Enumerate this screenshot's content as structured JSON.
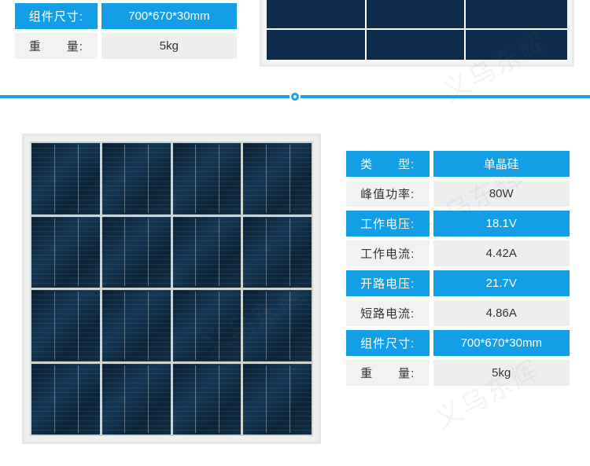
{
  "colors": {
    "accent": "#139fe6",
    "row_alt": "#efefef",
    "panel_frame": "#e6e8e5",
    "cell_dark": "#0b1f33"
  },
  "top_table": {
    "rows": [
      {
        "label": "组件尺寸:",
        "value": "700*670*30mm",
        "label_style": "blue",
        "value_style": "blue"
      },
      {
        "label": "重　　量:",
        "value": "5kg",
        "label_style": "white",
        "value_style": "gray"
      }
    ]
  },
  "bottom_table": {
    "rows": [
      {
        "label": "类　　型:",
        "value": "单晶硅",
        "label_style": "blue",
        "value_style": "blue"
      },
      {
        "label": "峰值功率:",
        "value": "80W",
        "label_style": "white",
        "value_style": "gray"
      },
      {
        "label": "工作电压:",
        "value": "18.1V",
        "label_style": "blue",
        "value_style": "blue"
      },
      {
        "label": "工作电流:",
        "value": "4.42A",
        "label_style": "white",
        "value_style": "gray"
      },
      {
        "label": "开路电压:",
        "value": "21.7V",
        "label_style": "blue",
        "value_style": "blue"
      },
      {
        "label": "短路电流:",
        "value": "4.86A",
        "label_style": "white",
        "value_style": "gray"
      },
      {
        "label": "组件尺寸:",
        "value": "700*670*30mm",
        "label_style": "blue",
        "value_style": "blue"
      },
      {
        "label": "重　　量:",
        "value": "5kg",
        "label_style": "white",
        "value_style": "gray"
      }
    ]
  },
  "watermark_text": "义乌东辉",
  "panel": {
    "grid_cols": 4,
    "grid_rows": 4,
    "frame_color": "#e6e8e5"
  }
}
